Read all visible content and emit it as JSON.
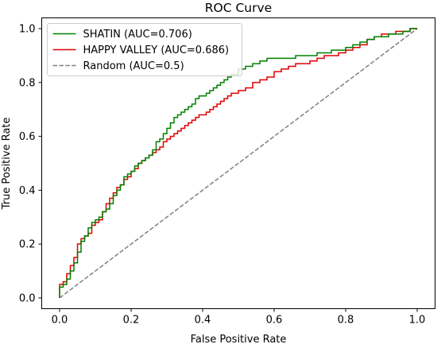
{
  "chart_data": {
    "type": "line",
    "title": "ROC Curve",
    "xlabel": "False Positive Rate",
    "ylabel": "True Positive Rate",
    "xlim": [
      -0.05,
      1.05
    ],
    "ylim": [
      -0.04,
      1.04
    ],
    "xticks": [
      0.0,
      0.2,
      0.4,
      0.6,
      0.8,
      1.0
    ],
    "yticks": [
      0.0,
      0.2,
      0.4,
      0.6,
      0.8,
      1.0
    ],
    "xtick_labels": [
      "0.0",
      "0.2",
      "0.4",
      "0.6",
      "0.8",
      "1.0"
    ],
    "ytick_labels": [
      "0.0",
      "0.2",
      "0.4",
      "0.6",
      "0.8",
      "1.0"
    ],
    "grid": false,
    "legend_position": "top-left",
    "series": [
      {
        "name": "SHATIN (AUC=0.706)",
        "color": "#008000",
        "style": "solid",
        "x": [
          0.0,
          0.0,
          0.01,
          0.02,
          0.03,
          0.04,
          0.05,
          0.06,
          0.07,
          0.08,
          0.09,
          0.1,
          0.11,
          0.12,
          0.13,
          0.14,
          0.15,
          0.16,
          0.17,
          0.18,
          0.19,
          0.2,
          0.21,
          0.22,
          0.23,
          0.24,
          0.25,
          0.26,
          0.27,
          0.28,
          0.29,
          0.3,
          0.31,
          0.32,
          0.33,
          0.34,
          0.35,
          0.36,
          0.37,
          0.38,
          0.39,
          0.4,
          0.41,
          0.42,
          0.43,
          0.44,
          0.45,
          0.46,
          0.47,
          0.48,
          0.5,
          0.52,
          0.54,
          0.56,
          0.58,
          0.6,
          0.62,
          0.64,
          0.66,
          0.68,
          0.7,
          0.72,
          0.74,
          0.76,
          0.78,
          0.8,
          0.82,
          0.84,
          0.86,
          0.88,
          0.9,
          0.92,
          0.94,
          0.96,
          0.98,
          1.0
        ],
        "y": [
          0.0,
          0.04,
          0.05,
          0.07,
          0.1,
          0.13,
          0.17,
          0.21,
          0.23,
          0.26,
          0.28,
          0.29,
          0.3,
          0.32,
          0.33,
          0.35,
          0.38,
          0.4,
          0.42,
          0.45,
          0.46,
          0.47,
          0.49,
          0.5,
          0.51,
          0.52,
          0.53,
          0.55,
          0.58,
          0.59,
          0.61,
          0.63,
          0.65,
          0.67,
          0.68,
          0.69,
          0.7,
          0.71,
          0.72,
          0.74,
          0.75,
          0.75,
          0.76,
          0.77,
          0.78,
          0.79,
          0.8,
          0.81,
          0.82,
          0.83,
          0.85,
          0.86,
          0.87,
          0.88,
          0.89,
          0.89,
          0.89,
          0.89,
          0.9,
          0.9,
          0.9,
          0.91,
          0.91,
          0.92,
          0.92,
          0.93,
          0.94,
          0.95,
          0.96,
          0.97,
          0.97,
          0.98,
          0.98,
          0.99,
          1.0,
          1.0
        ]
      },
      {
        "name": "HAPPY VALLEY (AUC=0.686)",
        "color": "#e00000",
        "style": "solid",
        "x": [
          0.0,
          0.0,
          0.01,
          0.02,
          0.03,
          0.04,
          0.05,
          0.06,
          0.07,
          0.08,
          0.09,
          0.1,
          0.11,
          0.12,
          0.13,
          0.14,
          0.15,
          0.16,
          0.17,
          0.18,
          0.19,
          0.2,
          0.21,
          0.22,
          0.23,
          0.24,
          0.25,
          0.26,
          0.27,
          0.28,
          0.29,
          0.3,
          0.31,
          0.32,
          0.33,
          0.34,
          0.35,
          0.36,
          0.37,
          0.38,
          0.39,
          0.4,
          0.41,
          0.42,
          0.43,
          0.44,
          0.45,
          0.46,
          0.47,
          0.48,
          0.5,
          0.52,
          0.54,
          0.56,
          0.58,
          0.6,
          0.62,
          0.64,
          0.66,
          0.68,
          0.7,
          0.72,
          0.74,
          0.76,
          0.78,
          0.8,
          0.82,
          0.84,
          0.86,
          0.88,
          0.9,
          0.92,
          0.94,
          0.96,
          0.98,
          1.0
        ],
        "y": [
          0.0,
          0.05,
          0.06,
          0.09,
          0.12,
          0.15,
          0.2,
          0.22,
          0.23,
          0.24,
          0.27,
          0.28,
          0.29,
          0.32,
          0.35,
          0.37,
          0.39,
          0.41,
          0.42,
          0.44,
          0.45,
          0.47,
          0.48,
          0.5,
          0.51,
          0.52,
          0.53,
          0.54,
          0.55,
          0.56,
          0.58,
          0.59,
          0.6,
          0.61,
          0.62,
          0.63,
          0.64,
          0.65,
          0.66,
          0.67,
          0.68,
          0.68,
          0.69,
          0.7,
          0.71,
          0.72,
          0.73,
          0.74,
          0.75,
          0.76,
          0.77,
          0.78,
          0.8,
          0.81,
          0.82,
          0.84,
          0.85,
          0.86,
          0.87,
          0.87,
          0.88,
          0.89,
          0.9,
          0.9,
          0.91,
          0.92,
          0.93,
          0.94,
          0.96,
          0.97,
          0.98,
          0.98,
          0.99,
          0.99,
          1.0,
          1.0
        ]
      },
      {
        "name": "Random (AUC=0.5)",
        "color": "#808080",
        "style": "dashed",
        "x": [
          0.0,
          1.0
        ],
        "y": [
          0.0,
          1.0
        ]
      }
    ]
  }
}
